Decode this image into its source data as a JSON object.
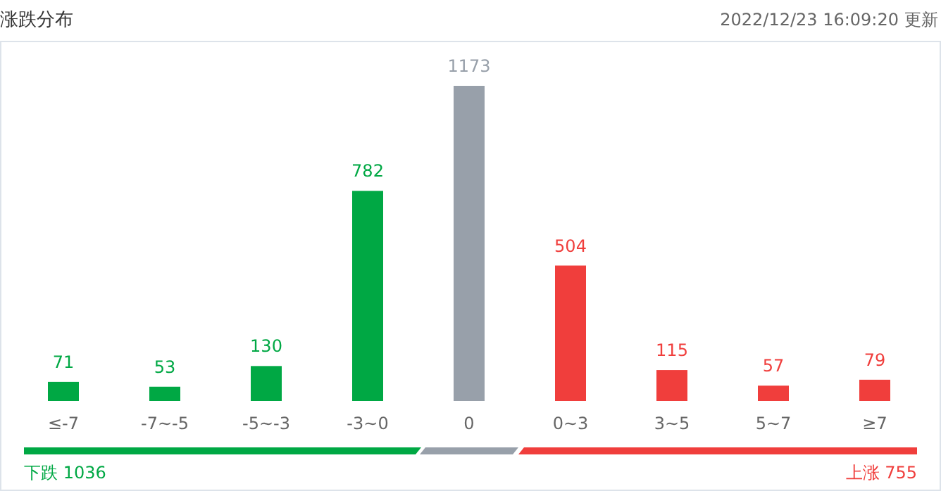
{
  "chart_data": {
    "type": "bar",
    "title": "涨跌分布",
    "categories": [
      "≤-7",
      "-7~-5",
      "-5~-3",
      "-3~0",
      "0",
      "0~3",
      "3~5",
      "5~7",
      "≥7"
    ],
    "values": [
      71,
      53,
      130,
      782,
      1173,
      504,
      115,
      57,
      79
    ],
    "colors": [
      "#00a844",
      "#00a844",
      "#00a844",
      "#00a844",
      "#98a0aa",
      "#f03e3c",
      "#f03e3c",
      "#f03e3c",
      "#f03e3c"
    ],
    "data_labels": true,
    "annotations": [
      "2022/12/23 16:09:20",
      "更新",
      "下跌 1036",
      "上涨 755"
    ]
  }
}
